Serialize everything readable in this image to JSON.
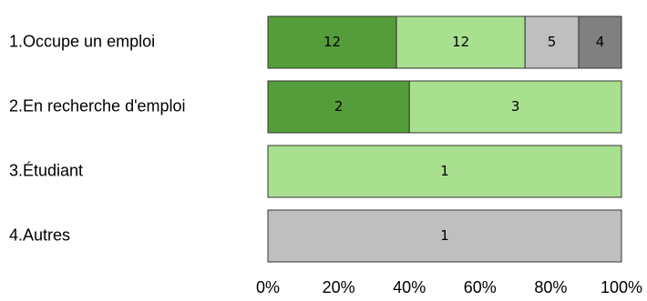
{
  "chart_data": {
    "type": "bar",
    "orientation": "horizontal",
    "stacked": "percent",
    "categories": [
      "1.Occupe un emploi",
      "2.En recherche d'emploi",
      "3.Étudiant",
      "4.Autres"
    ],
    "series": [
      {
        "values": [
          12,
          2,
          0,
          0
        ],
        "color": "#559d3a"
      },
      {
        "values": [
          12,
          3,
          1,
          0
        ],
        "color": "#a9e08f"
      },
      {
        "values": [
          5,
          0,
          0,
          1
        ],
        "color": "#bfbfbf"
      },
      {
        "values": [
          4,
          0,
          0,
          0
        ],
        "color": "#808080"
      }
    ],
    "x_ticks": [
      "0%",
      "20%",
      "40%",
      "60%",
      "80%",
      "100%"
    ],
    "xlim": [
      0,
      100
    ],
    "grid": false,
    "legend": "none"
  }
}
